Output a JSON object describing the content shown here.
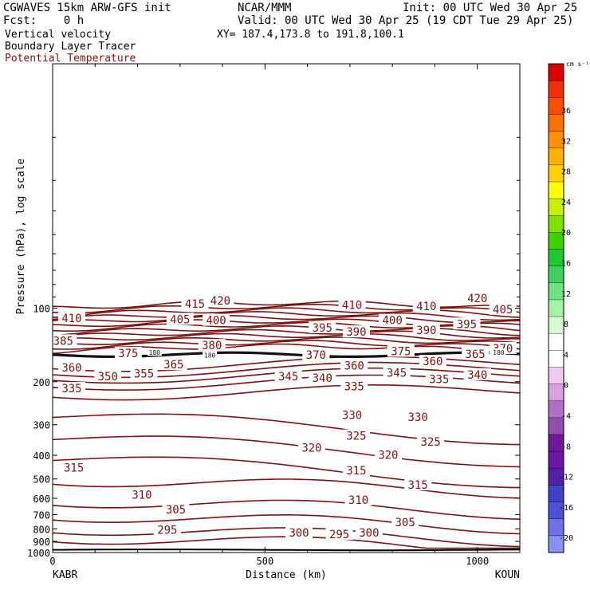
{
  "header": {
    "model": "CGWAVES 15km ARW-GFS init",
    "org": "NCAR/MMM",
    "init": "Init: 00 UTC Wed 30 Apr 25",
    "fcst": "Fcst:    0 h",
    "valid": "Valid: 00 UTC Wed 30 Apr 25 (19 CDT Tue 29 Apr 25)",
    "line1": "Vertical velocity",
    "xy": "XY= 187.4,173.8 to 191.8,100.1",
    "line2": "Boundary Layer Tracer",
    "line3": "Potential Temperature"
  },
  "colorbar": {
    "unit": "cm s⁻¹",
    "ticks": [
      "36",
      "32",
      "28",
      "24",
      "20",
      "16",
      "12",
      "8",
      "4",
      "0",
      "-4",
      "-8",
      "-12",
      "-16",
      "-20"
    ],
    "colors": [
      "#e00000",
      "#f03000",
      "#f85000",
      "#ff7000",
      "#ff9000",
      "#ffb000",
      "#ffd000",
      "#ffff00",
      "#c8f000",
      "#80e000",
      "#40d000",
      "#20c830",
      "#40d060",
      "#70e080",
      "#a8f0a8",
      "#d8f8d8",
      "#ffffff",
      "#ffffff",
      "#f0c8f0",
      "#d8a0e0",
      "#b070c8",
      "#9050b0",
      "#701898",
      "#6818a0",
      "#5020a8",
      "#4040c8",
      "#5050d8",
      "#7070e8",
      "#8890f0"
    ]
  },
  "chart_data": {
    "type": "contour",
    "xlabel": "Distance (km)",
    "ylabel": "Pressure (hPa), log scale",
    "x_ticks": [
      "0",
      "500",
      "1000"
    ],
    "xlim": [
      0,
      1100
    ],
    "y_ticks": [
      "100",
      "200",
      "300",
      "400",
      "500",
      "600",
      "700",
      "800",
      "900",
      "1000"
    ],
    "ylim": [
      1000,
      10
    ],
    "y_scale": "log",
    "endpoints": {
      "left": "KABR",
      "right": "KOUN"
    },
    "field": "Potential Temperature (K)",
    "contour_interval": 5,
    "contour_levels": [
      295,
      300,
      305,
      310,
      315,
      320,
      325,
      330,
      335,
      340,
      345,
      350,
      355,
      360,
      365,
      370,
      375,
      380,
      385,
      390,
      395,
      400,
      405,
      410,
      415,
      420
    ],
    "contour_labels": [
      {
        "value": "420",
        "x": 395,
        "p": 93
      },
      {
        "value": "415",
        "x": 335,
        "p": 96
      },
      {
        "value": "420",
        "x": 1000,
        "p": 91
      },
      {
        "value": "410",
        "x": 45,
        "p": 110
      },
      {
        "value": "405",
        "x": 300,
        "p": 111
      },
      {
        "value": "400",
        "x": 385,
        "p": 112
      },
      {
        "value": "410",
        "x": 705,
        "p": 97
      },
      {
        "value": "410",
        "x": 880,
        "p": 98
      },
      {
        "value": "405",
        "x": 1060,
        "p": 101
      },
      {
        "value": "395",
        "x": 635,
        "p": 120
      },
      {
        "value": "390",
        "x": 715,
        "p": 125
      },
      {
        "value": "400",
        "x": 800,
        "p": 112
      },
      {
        "value": "390",
        "x": 880,
        "p": 123
      },
      {
        "value": "395",
        "x": 975,
        "p": 116
      },
      {
        "value": "385",
        "x": 25,
        "p": 136
      },
      {
        "value": "375",
        "x": 178,
        "p": 153
      },
      {
        "value": "380",
        "x": 375,
        "p": 142
      },
      {
        "value": "370",
        "x": 620,
        "p": 155
      },
      {
        "value": "375",
        "x": 820,
        "p": 150
      },
      {
        "value": "365",
        "x": 995,
        "p": 154
      },
      {
        "value": "370",
        "x": 1060,
        "p": 146
      },
      {
        "value": "365",
        "x": 285,
        "p": 170
      },
      {
        "value": "360",
        "x": 710,
        "p": 172
      },
      {
        "value": "360",
        "x": 895,
        "p": 165
      },
      {
        "value": "360",
        "x": 45,
        "p": 175
      },
      {
        "value": "350",
        "x": 130,
        "p": 190
      },
      {
        "value": "355",
        "x": 215,
        "p": 185
      },
      {
        "value": "345",
        "x": 555,
        "p": 190
      },
      {
        "value": "340",
        "x": 635,
        "p": 193
      },
      {
        "value": "345",
        "x": 810,
        "p": 184
      },
      {
        "value": "335",
        "x": 910,
        "p": 195
      },
      {
        "value": "340",
        "x": 1000,
        "p": 187
      },
      {
        "value": "335",
        "x": 45,
        "p": 213
      },
      {
        "value": "335",
        "x": 710,
        "p": 209
      },
      {
        "value": "330",
        "x": 705,
        "p": 274
      },
      {
        "value": "330",
        "x": 860,
        "p": 279
      },
      {
        "value": "325",
        "x": 715,
        "p": 333
      },
      {
        "value": "325",
        "x": 890,
        "p": 352
      },
      {
        "value": "320",
        "x": 610,
        "p": 373
      },
      {
        "value": "320",
        "x": 790,
        "p": 398
      },
      {
        "value": "315",
        "x": 50,
        "p": 450
      },
      {
        "value": "315",
        "x": 715,
        "p": 462
      },
      {
        "value": "315",
        "x": 860,
        "p": 528
      },
      {
        "value": "310",
        "x": 210,
        "p": 580
      },
      {
        "value": "310",
        "x": 720,
        "p": 610
      },
      {
        "value": "305",
        "x": 290,
        "p": 667
      },
      {
        "value": "305",
        "x": 830,
        "p": 753
      },
      {
        "value": "300",
        "x": 580,
        "p": 828
      },
      {
        "value": "295",
        "x": 270,
        "p": 806
      },
      {
        "value": "295",
        "x": 675,
        "p": 841
      },
      {
        "value": "300",
        "x": 745,
        "p": 828
      }
    ],
    "tracer_labels": [
      {
        "value": "180",
        "x": 240,
        "p": 152
      },
      {
        "value": "180",
        "x": 370,
        "p": 156
      },
      {
        "value": "180",
        "x": 1050,
        "p": 152
      }
    ]
  }
}
